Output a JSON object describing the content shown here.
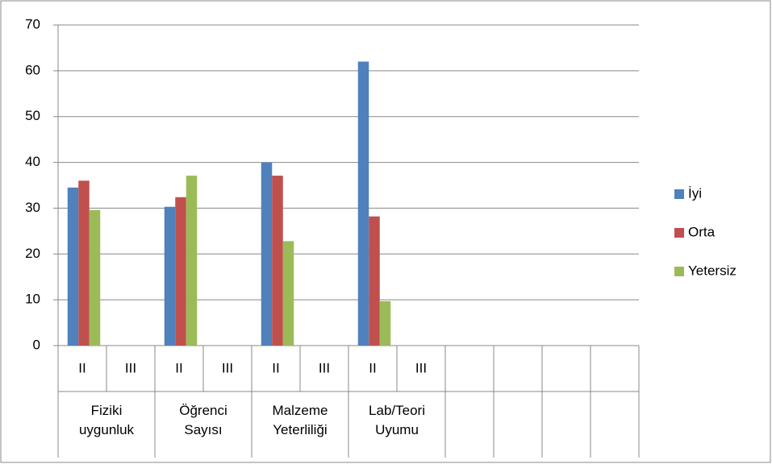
{
  "chart_data": {
    "type": "bar",
    "groups": [
      {
        "label": "Fiziki uygunluk",
        "categories": [
          "II",
          "III"
        ]
      },
      {
        "label": "Öğrenci Sayısı",
        "categories": [
          "II",
          "III"
        ]
      },
      {
        "label": "Malzeme Yeterliliği",
        "categories": [
          "II",
          "III"
        ]
      },
      {
        "label": "Lab/Teori Uyumu",
        "categories": [
          "II",
          "III"
        ]
      },
      {
        "label": null,
        "categories": [
          null
        ]
      },
      {
        "label": null,
        "categories": [
          null
        ]
      },
      {
        "label": null,
        "categories": [
          null
        ]
      },
      {
        "label": null,
        "categories": [
          null
        ]
      }
    ],
    "series": [
      {
        "name": "İyi",
        "color": "#4f81bd",
        "values": [
          34.5,
          null,
          30.3,
          null,
          40,
          null,
          62,
          null,
          null,
          null,
          null,
          null
        ]
      },
      {
        "name": "Orta",
        "color": "#c0504d",
        "values": [
          36,
          null,
          32.4,
          null,
          37.1,
          null,
          28.2,
          null,
          null,
          null,
          null,
          null
        ]
      },
      {
        "name": "Yetersiz",
        "color": "#9bbb59",
        "values": [
          29.6,
          null,
          37.1,
          null,
          22.8,
          null,
          9.7,
          null,
          null,
          null,
          null,
          null
        ]
      }
    ],
    "ylim": [
      0,
      70
    ],
    "yticks": [
      0,
      10,
      20,
      30,
      40,
      50,
      60,
      70
    ],
    "grid": true,
    "legend": "right"
  }
}
